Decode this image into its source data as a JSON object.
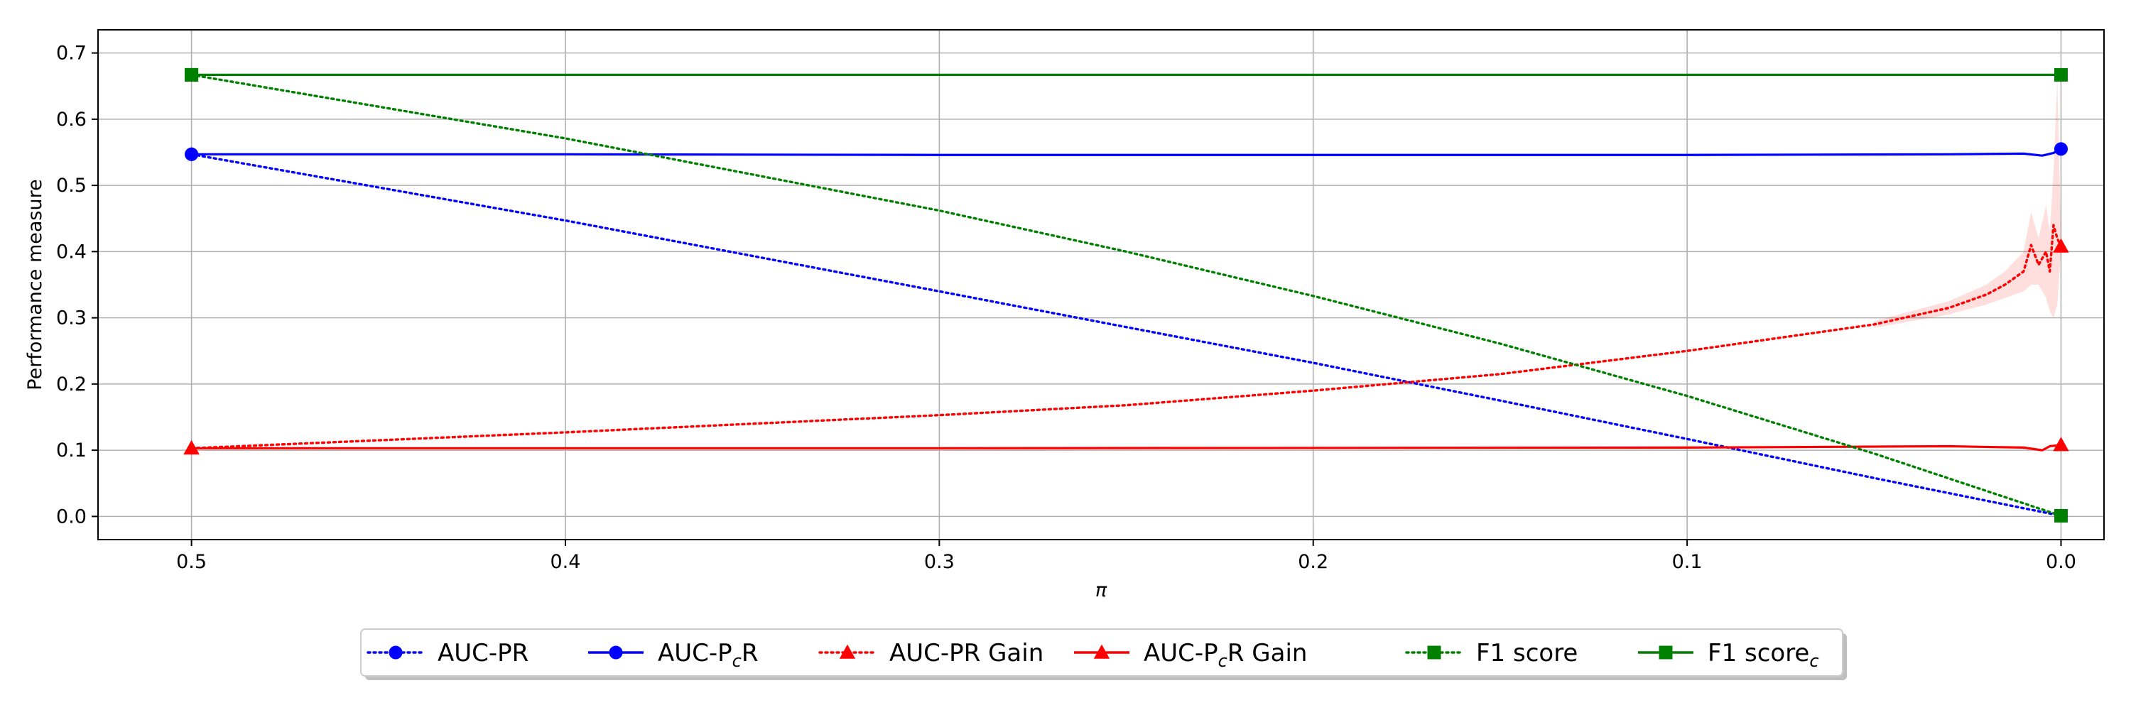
{
  "chart_data": {
    "type": "line",
    "xlabel": "π",
    "ylabel": "Performance measure",
    "xlim": [
      0.525,
      -0.0115
    ],
    "ylim": [
      -0.035,
      0.735
    ],
    "x_inverted": true,
    "grid": true,
    "legend_position": "bottom-center",
    "x_ticks": [
      {
        "value": 0.5,
        "label": "0.5"
      },
      {
        "value": 0.4,
        "label": "0.4"
      },
      {
        "value": 0.3,
        "label": "0.3"
      },
      {
        "value": 0.2,
        "label": "0.2"
      },
      {
        "value": 0.1,
        "label": "0.1"
      },
      {
        "value": 0.0,
        "label": "0.0"
      }
    ],
    "y_ticks": [
      {
        "value": 0.0,
        "label": "0.0"
      },
      {
        "value": 0.1,
        "label": "0.1"
      },
      {
        "value": 0.2,
        "label": "0.2"
      },
      {
        "value": 0.3,
        "label": "0.3"
      },
      {
        "value": 0.4,
        "label": "0.4"
      },
      {
        "value": 0.5,
        "label": "0.5"
      },
      {
        "value": 0.6,
        "label": "0.6"
      },
      {
        "value": 0.7,
        "label": "0.7"
      }
    ],
    "series": [
      {
        "name": "AUC-PR",
        "color": "#0000ff",
        "line_style": "dotted",
        "marker": "circle",
        "x": [
          0.5,
          0.4,
          0.3,
          0.2,
          0.15,
          0.1,
          0.05,
          0.0
        ],
        "y": [
          0.547,
          0.447,
          0.34,
          0.232,
          0.175,
          0.117,
          0.058,
          0.001
        ]
      },
      {
        "name_main": "AUC-P",
        "name_sub": "c",
        "name_tail": "R",
        "color": "#0000ff",
        "line_style": "solid",
        "marker": "circle",
        "x": [
          0.5,
          0.4,
          0.3,
          0.2,
          0.1,
          0.03,
          0.01,
          0.005,
          0.002,
          0.0
        ],
        "y": [
          0.547,
          0.547,
          0.546,
          0.546,
          0.546,
          0.547,
          0.548,
          0.545,
          0.549,
          0.555
        ]
      },
      {
        "name": "AUC-PR Gain",
        "color": "#ff0000",
        "line_style": "dotted",
        "marker": "triangle",
        "x": [
          0.5,
          0.4,
          0.3,
          0.25,
          0.2,
          0.15,
          0.1,
          0.05,
          0.03,
          0.02,
          0.015,
          0.01,
          0.008,
          0.006,
          0.004,
          0.003,
          0.002,
          0.001,
          0.0
        ],
        "y": [
          0.103,
          0.127,
          0.153,
          0.168,
          0.19,
          0.215,
          0.25,
          0.29,
          0.315,
          0.335,
          0.35,
          0.37,
          0.41,
          0.38,
          0.4,
          0.37,
          0.44,
          0.42,
          0.408
        ]
      },
      {
        "name_main": "AUC-P",
        "name_sub": "c",
        "name_tail": "R Gain",
        "color": "#ff0000",
        "line_style": "solid",
        "marker": "triangle",
        "x": [
          0.5,
          0.3,
          0.1,
          0.03,
          0.01,
          0.005,
          0.003,
          0.0
        ],
        "y": [
          0.103,
          0.103,
          0.104,
          0.106,
          0.104,
          0.1,
          0.106,
          0.108
        ]
      },
      {
        "name": "F1 score",
        "color": "#008000",
        "line_style": "dotted",
        "marker": "square",
        "x": [
          0.5,
          0.4,
          0.3,
          0.25,
          0.2,
          0.15,
          0.1,
          0.05,
          0.0
        ],
        "y": [
          0.667,
          0.571,
          0.462,
          0.4,
          0.333,
          0.261,
          0.182,
          0.095,
          0.001
        ]
      },
      {
        "name_main": "F1 score",
        "name_sub": "c",
        "name_tail": "",
        "color": "#008000",
        "line_style": "solid",
        "marker": "square",
        "x": [
          0.5,
          0.0
        ],
        "y": [
          0.667,
          0.667
        ]
      }
    ],
    "bands": [
      {
        "color": "#ff0000",
        "x": [
          0.05,
          0.03,
          0.02,
          0.015,
          0.01,
          0.008,
          0.006,
          0.004,
          0.003,
          0.002,
          0.001,
          0.0
        ],
        "lower": [
          0.285,
          0.305,
          0.32,
          0.33,
          0.34,
          0.35,
          0.35,
          0.33,
          0.31,
          0.3,
          0.32,
          0.4
        ],
        "upper": [
          0.295,
          0.325,
          0.35,
          0.37,
          0.4,
          0.46,
          0.42,
          0.47,
          0.43,
          0.52,
          0.66,
          0.42
        ]
      }
    ]
  }
}
